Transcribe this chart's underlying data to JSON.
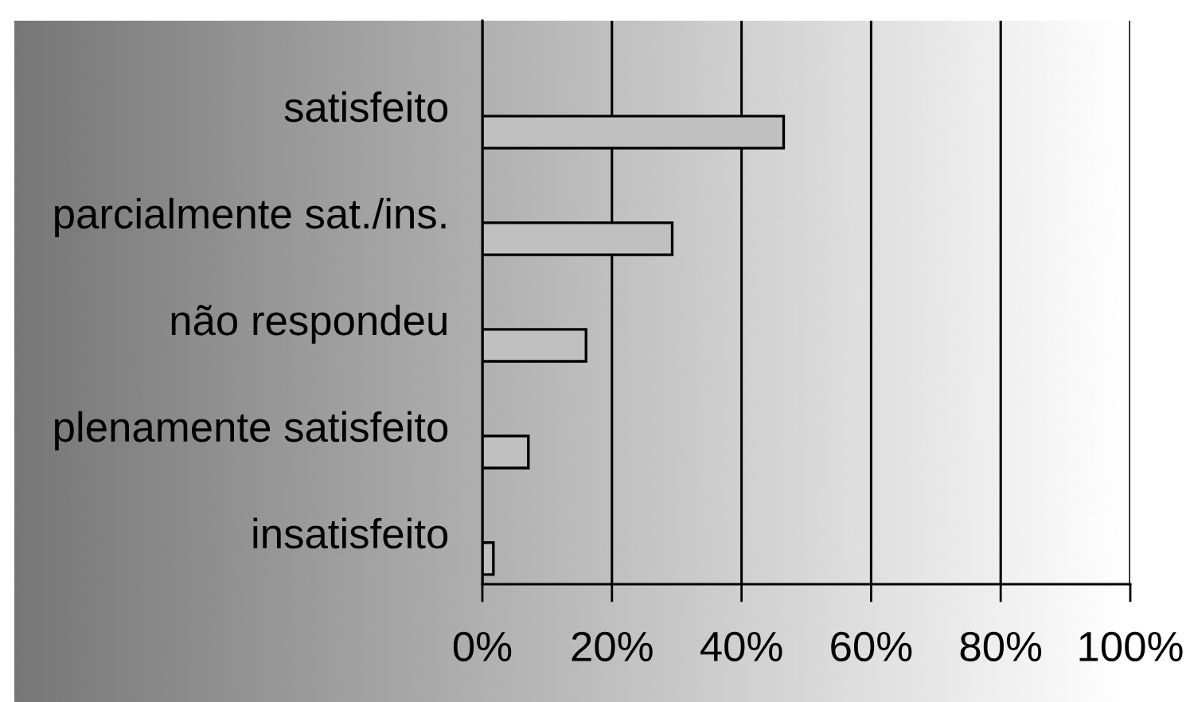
{
  "chart_data": {
    "type": "bar",
    "orientation": "horizontal",
    "categories": [
      "satisfeito",
      "parcialmente sat./ins.",
      "não respondeu",
      "plenamente satisfeito",
      "insatisfeito"
    ],
    "values": [
      46.5,
      29.3,
      16.0,
      7.1,
      1.7
    ],
    "color": "#c0c0c0",
    "xlim": [
      0,
      100
    ],
    "xticks": [
      {
        "value": 0,
        "label": "0%"
      },
      {
        "value": 20,
        "label": "20%"
      },
      {
        "value": 40,
        "label": "40%"
      },
      {
        "value": 60,
        "label": "60%"
      },
      {
        "value": 80,
        "label": "80%"
      },
      {
        "value": 100,
        "label": "100%"
      }
    ],
    "grid": "x"
  }
}
